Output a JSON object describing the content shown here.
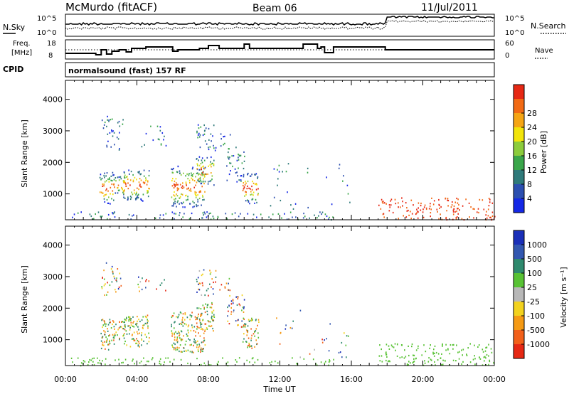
{
  "header": {
    "station": "McMurdo (fitACF)",
    "beam": "Beam 06",
    "date": "11/Jul/2011"
  },
  "top_panels": {
    "nsky_label": "N.Sky",
    "nsky_ticks": [
      "10^5",
      "10^0"
    ],
    "nsearch_label": "N.Search",
    "nsearch_ticks": [
      "10^5",
      "10^0"
    ],
    "freq_label_1": "Freq.",
    "freq_label_2": "[MHz]",
    "freq_ticks": [
      "18",
      "8"
    ],
    "nave_label": "Nave",
    "nave_ticks": [
      "60",
      "0"
    ],
    "cpid_label": "CPID",
    "cpid_text": "normalsound (fast) 157 RF"
  },
  "chart_data": [
    {
      "type": "heatmap",
      "name": "power-panel",
      "ylabel": "Slant Range [km]",
      "xlabel": "",
      "ylim": [
        180,
        4600
      ],
      "yticks": [
        "1000",
        "2000",
        "3000",
        "4000"
      ],
      "xlim_hours": [
        0,
        24
      ],
      "colorbar_label": "Power [dB]",
      "colorbar_ticks": [
        "4",
        "8",
        "12",
        "16",
        "20",
        "24",
        "28"
      ],
      "colors": [
        "#1428e6",
        "#2c4fb0",
        "#2f7a7a",
        "#3aa64a",
        "#8ccc3c",
        "#f2e40a",
        "#f5a514",
        "#f26a14",
        "#e62814"
      ]
    },
    {
      "type": "heatmap",
      "name": "velocity-panel",
      "ylabel": "Slant Range [km]",
      "xlabel": "Time UT",
      "ylim": [
        180,
        4600
      ],
      "yticks": [
        "1000",
        "2000",
        "3000",
        "4000"
      ],
      "xticks": [
        "00:00",
        "04:00",
        "08:00",
        "12:00",
        "16:00",
        "20:00",
        "00:00"
      ],
      "xlim_hours": [
        0,
        24
      ],
      "colorbar_label": "Velocity [m s⁻¹]",
      "colorbar_ticks": [
        "1000",
        "500",
        "100",
        "25",
        "-25",
        "-100",
        "-500",
        "-1000"
      ],
      "colors": [
        "#1a2fb8",
        "#3257b0",
        "#2f8a6e",
        "#58c234",
        "#b8b8b8",
        "#f2d21e",
        "#f59a14",
        "#f2601a",
        "#e62814"
      ]
    }
  ]
}
